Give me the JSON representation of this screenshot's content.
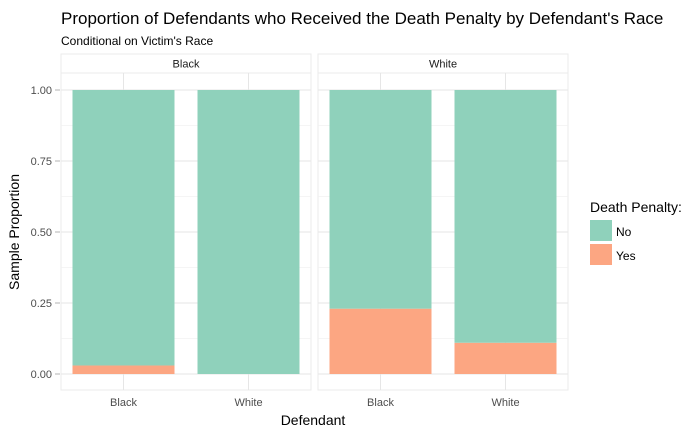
{
  "chart_data": {
    "type": "bar",
    "stacked": true,
    "title": "Proportion of Defendants who Received the Death Penalty by Defendant's Race",
    "subtitle": "Conditional on Victim's Race",
    "xlabel": "Defendant",
    "ylabel": "Sample Proportion",
    "ylim": [
      0,
      1.05
    ],
    "yticks": [
      "0.00",
      "0.25",
      "0.50",
      "0.75",
      "1.00"
    ],
    "ytick_values": [
      0,
      0.25,
      0.5,
      0.75,
      1.0
    ],
    "categories": [
      "Black",
      "White"
    ],
    "legend": {
      "title": "Death Penalty:",
      "placement": "right",
      "entries": [
        {
          "name": "No",
          "color": "#8fd1bb"
        },
        {
          "name": "Yes",
          "color": "#fca682"
        }
      ]
    },
    "grid": true,
    "facets": [
      {
        "label": "Black",
        "series": [
          {
            "name": "Yes",
            "values": [
              0.03,
              0.0
            ]
          },
          {
            "name": "No",
            "values": [
              0.97,
              1.0
            ]
          }
        ]
      },
      {
        "label": "White",
        "series": [
          {
            "name": "Yes",
            "values": [
              0.23,
              0.11
            ]
          },
          {
            "name": "No",
            "values": [
              0.77,
              0.89
            ]
          }
        ]
      }
    ]
  }
}
